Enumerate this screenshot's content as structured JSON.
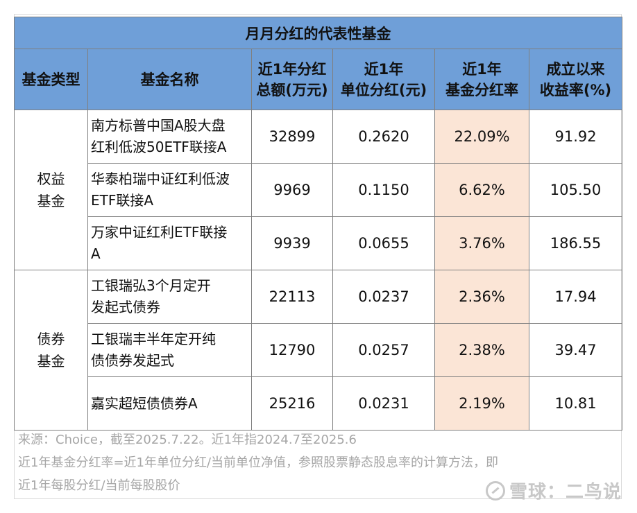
{
  "table": {
    "title": "月月分红的代表性基金",
    "headers": {
      "type": "基金类型",
      "name": "基金名称",
      "total_line1": "近1年分红",
      "total_line2": "总额(万元)",
      "unit_line1": "近1年",
      "unit_line2": "单位分红(元)",
      "rate_line1": "近1年",
      "rate_line2": "基金分红率",
      "return_line1": "成立以来",
      "return_line2": "收益率(%)"
    },
    "groups": [
      {
        "type_line1": "权益",
        "type_line2": "基金",
        "rows": [
          {
            "name_line1": "南方标普中国A股大盘",
            "name_line2": "红利低波50ETF联接A",
            "total": "32899",
            "unit": "0.2620",
            "rate": "22.09%",
            "ret": "91.92"
          },
          {
            "name_line1": "华泰柏瑞中证红利低波",
            "name_line2": "ETF联接A",
            "total": "9969",
            "unit": "0.1150",
            "rate": "6.62%",
            "ret": "105.50"
          },
          {
            "name_line1": "万家中证红利ETF联接",
            "name_line2": "A",
            "total": "9939",
            "unit": "0.0655",
            "rate": "3.76%",
            "ret": "186.55"
          }
        ]
      },
      {
        "type_line1": "债券",
        "type_line2": "基金",
        "rows": [
          {
            "name_line1": "工银瑞弘3个月定开",
            "name_line2": "发起式债券",
            "total": "22113",
            "unit": "0.0237",
            "rate": "2.36%",
            "ret": "17.94"
          },
          {
            "name_line1": "工银瑞丰半年定开纯",
            "name_line2": "债债券发起式",
            "total": "12790",
            "unit": "0.0257",
            "rate": "2.38%",
            "ret": "39.47"
          },
          {
            "name_line1": "嘉实超短债债券A",
            "name_line2": "",
            "total": "25216",
            "unit": "0.0231",
            "rate": "2.19%",
            "ret": "10.81"
          }
        ]
      }
    ]
  },
  "notes": {
    "source": "来源：Choice，截至2025.7.22。近1年指2024.7至2025.6",
    "formula_line1": "近1年基金分红率=近1年单位分红/当前单位净值，参照股票静态股息率的计算方法，即",
    "formula_line2": "近1年每股分红/当前每股股价"
  },
  "watermark": {
    "text": "雪球：二鸟说",
    "icon": "xueqiu-logo-icon"
  }
}
